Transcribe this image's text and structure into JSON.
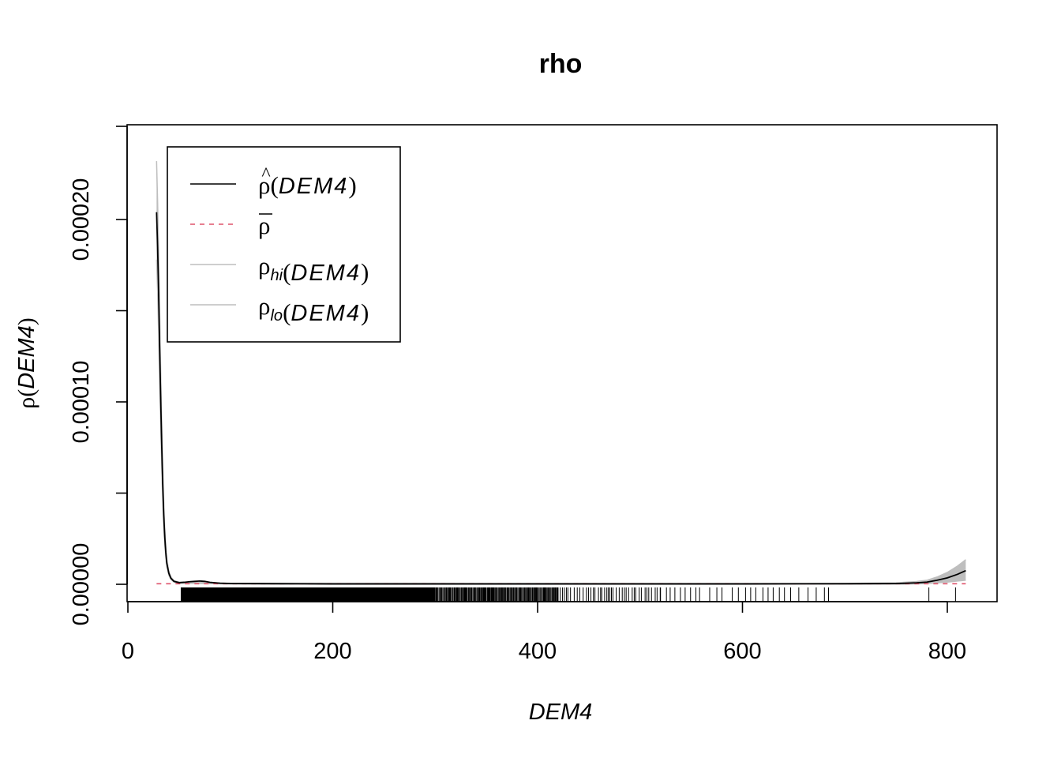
{
  "chart_data": {
    "type": "line",
    "title": "rho",
    "xlabel": "DEM4",
    "ylabel": {
      "greek": "ρ",
      "paren_open": "(",
      "var": "DEM4",
      "paren_close": ")"
    },
    "xlim": [
      0,
      820
    ],
    "ylim": [
      0,
      0.00024
    ],
    "x_ticks": [
      0,
      200,
      400,
      600,
      800
    ],
    "x_tick_labels": [
      "0",
      "200",
      "400",
      "600",
      "800"
    ],
    "y_ticks": [
      0,
      5e-05,
      0.0001,
      0.00015,
      0.0002
    ],
    "y_tick_labels": [
      "0.00000",
      "0.00010",
      "0.00020"
    ],
    "y_labeled_ticks": [
      0,
      0.0001,
      0.0002
    ],
    "legend": {
      "position": "top-left",
      "entries": [
        {
          "greek": "ρ",
          "accent": "^",
          "sub": "",
          "arg": "DEM4",
          "color": "#000000",
          "dash": "solid"
        },
        {
          "greek": "ρ",
          "accent": "bar",
          "sub": "",
          "arg": "",
          "color": "#DF536B",
          "dash": "dashed"
        },
        {
          "greek": "ρ",
          "accent": "",
          "sub": "hi",
          "arg": "DEM4",
          "color": "#BEBEBE",
          "dash": "solid"
        },
        {
          "greek": "ρ",
          "accent": "",
          "sub": "lo",
          "arg": "DEM4",
          "color": "#BEBEBE",
          "dash": "solid"
        }
      ]
    },
    "series": [
      {
        "name": "rho_hat",
        "color": "#000000",
        "x": [
          28,
          29,
          30,
          31,
          32,
          33,
          34,
          35,
          36,
          37,
          38,
          40,
          42,
          45,
          50,
          55,
          60,
          65,
          70,
          75,
          80,
          90,
          100,
          150,
          200,
          300,
          400,
          500,
          600,
          700,
          750,
          770,
          780,
          790,
          800,
          810,
          818
        ],
        "y": [
          0.000204,
          0.000185,
          0.00016,
          0.00013,
          0.000102,
          7.7e-05,
          5.5e-05,
          3.8e-05,
          2.6e-05,
          1.75e-05,
          1.15e-05,
          6e-06,
          3.3e-06,
          1.6e-06,
          9e-07,
          1.1e-06,
          1.4e-06,
          1.6e-06,
          1.8e-06,
          1.6e-06,
          1.1e-06,
          6e-07,
          4e-07,
          3e-07,
          2e-07,
          2e-07,
          2e-07,
          2e-07,
          2e-07,
          3e-07,
          4e-07,
          8e-07,
          1.2e-06,
          2.2e-06,
          3.5e-06,
          5.5e-06,
          7.5e-06
        ]
      },
      {
        "name": "rho_bar",
        "color": "#DF536B",
        "x": [
          28,
          818
        ],
        "y": [
          3e-07,
          3e-07
        ]
      },
      {
        "name": "rho_hi",
        "color": "#BEBEBE",
        "x": [
          28,
          29,
          30,
          31,
          32,
          33,
          34,
          35,
          36,
          37,
          38,
          40,
          42,
          45,
          50,
          100,
          700,
          750,
          770,
          780,
          790,
          800,
          810,
          818
        ],
        "y": [
          0.000232,
          0.00021,
          0.000183,
          0.00015,
          0.000118,
          9e-05,
          6.5e-05,
          4.5e-05,
          3.1e-05,
          2.1e-05,
          1.38e-05,
          7.2e-06,
          4e-06,
          2e-06,
          1.2e-06,
          6e-07,
          5e-07,
          8e-07,
          1.5e-06,
          2.2e-06,
          4e-06,
          6.5e-06,
          1e-05,
          1.35e-05
        ]
      },
      {
        "name": "rho_lo",
        "color": "#BEBEBE",
        "x": [
          28,
          29,
          30,
          31,
          32,
          33,
          34,
          35,
          36,
          37,
          38,
          40,
          42,
          45,
          50,
          100,
          700,
          750,
          770,
          780,
          790,
          800,
          810,
          818
        ],
        "y": [
          0.000178,
          0.000161,
          0.000138,
          0.000111,
          8.7e-05,
          6.5e-05,
          4.6e-05,
          3.2e-05,
          2.2e-05,
          1.45e-05,
          9.5e-06,
          4.9e-06,
          2.7e-06,
          1.2e-06,
          6e-07,
          2e-07,
          1e-07,
          1e-07,
          2e-07,
          4e-07,
          8e-07,
          1.2e-06,
          1.8e-06,
          2.2e-06
        ]
      }
    ],
    "rug_color": "#000000"
  }
}
